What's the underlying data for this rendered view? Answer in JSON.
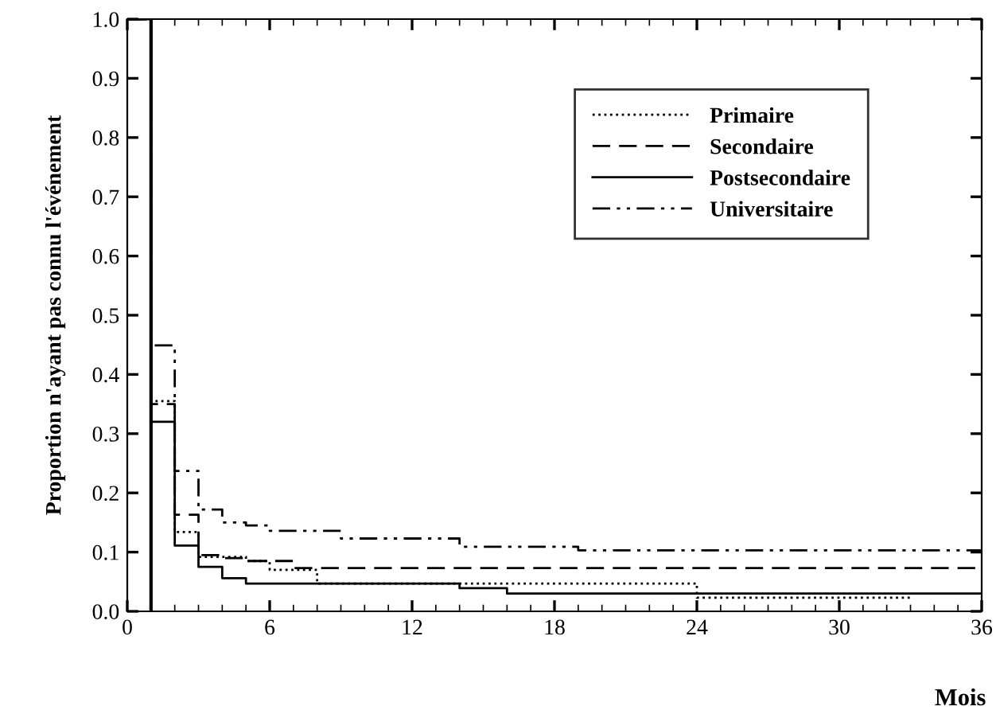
{
  "chart_data": {
    "type": "step",
    "xlabel": "Mois",
    "ylabel": "Proportion n'ayant pas connu l'événement",
    "xlim": [
      0,
      36
    ],
    "ylim": [
      0,
      1
    ],
    "xticks": [
      0,
      6,
      12,
      18,
      24,
      30,
      36
    ],
    "yticks": [
      {
        "value": 0,
        "label": "0.0"
      },
      0.1,
      0.2,
      0.3,
      0.4,
      0.5,
      0.6,
      0.7,
      0.8,
      0.9,
      {
        "value": 1,
        "label": "1.0"
      }
    ],
    "grid": false,
    "legend": "top right",
    "marker": "none",
    "ref_lines": [
      {
        "axis": "x",
        "value": 1,
        "label": null,
        "color": "#000000",
        "line_style": "solid"
      }
    ],
    "series": [
      {
        "name": "Primaire",
        "color": "#000000",
        "line_style": "dotted",
        "x": [
          0,
          1,
          2,
          3,
          5,
          6,
          8,
          24,
          33
        ],
        "values": [
          1,
          0.355,
          0.134,
          0.092,
          0.085,
          0.07,
          0.047,
          0.023,
          0.023
        ]
      },
      {
        "name": "Secondaire",
        "color": "#000000",
        "line_style": "dashed",
        "x": [
          0,
          1,
          2,
          3,
          4,
          5,
          7,
          36
        ],
        "values": [
          1,
          0.35,
          0.163,
          0.095,
          0.09,
          0.085,
          0.073,
          0.073
        ]
      },
      {
        "name": "Postsecondaire",
        "color": "#000000",
        "line_style": "solid",
        "x": [
          0,
          1,
          2,
          3,
          4,
          5,
          14,
          16,
          36
        ],
        "values": [
          1,
          0.32,
          0.111,
          0.075,
          0.056,
          0.047,
          0.039,
          0.03,
          0.03
        ]
      },
      {
        "name": "Universitaire",
        "color": "#000000",
        "line_style": "dashdot",
        "x": [
          0,
          1,
          2,
          3,
          4,
          5,
          6,
          9,
          14,
          19,
          36
        ],
        "values": [
          1,
          0.449,
          0.237,
          0.172,
          0.15,
          0.145,
          0.136,
          0.123,
          0.109,
          0.103,
          0.103
        ]
      }
    ]
  }
}
